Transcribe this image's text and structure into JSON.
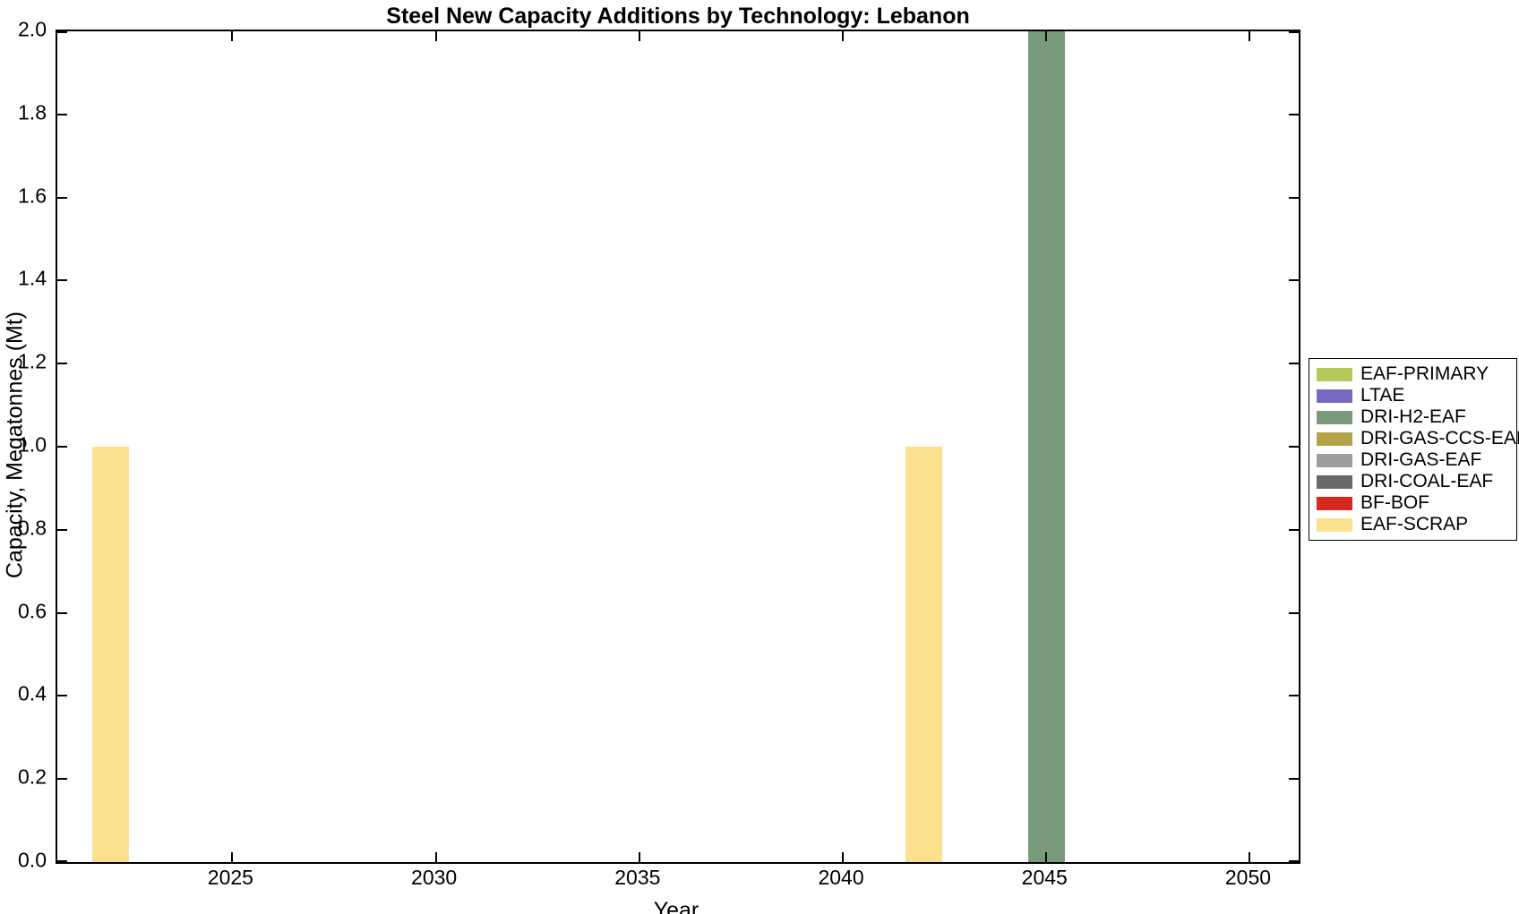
{
  "chart_data": {
    "type": "bar",
    "title": "Steel New Capacity Additions by Technology: Lebanon",
    "xlabel": "Year",
    "ylabel": "Capacity, Megatonnes (Mt)",
    "xlim": [
      2020.7,
      2051.2
    ],
    "ylim": [
      0,
      2
    ],
    "grid": false,
    "legend_position": "right-outside",
    "bar_width_years": 0.9,
    "xtick_values": [
      2025,
      2030,
      2035,
      2040,
      2045,
      2050
    ],
    "xtick_labels": [
      "2025",
      "2030",
      "2035",
      "2040",
      "2045",
      "2050"
    ],
    "ytick_values": [
      0,
      0.2,
      0.4,
      0.6,
      0.8,
      1.0,
      1.2,
      1.4,
      1.6,
      1.8,
      2.0
    ],
    "ytick_labels": [
      "0.0",
      "0.2",
      "0.4",
      "0.6",
      "0.8",
      "1.0",
      "1.2",
      "1.4",
      "1.6",
      "1.8",
      "2.0"
    ],
    "bars": [
      {
        "year": 2022,
        "series": "EAF-SCRAP",
        "value": 1.0
      },
      {
        "year": 2042,
        "series": "EAF-SCRAP",
        "value": 1.0
      },
      {
        "year": 2045,
        "series": "DRI-H2-EAF",
        "value": 2.0
      }
    ],
    "legend": [
      {
        "label": "EAF-PRIMARY",
        "color": "#b3c95b"
      },
      {
        "label": "LTAE",
        "color": "#7669c1"
      },
      {
        "label": "DRI-H2-EAF",
        "color": "#78997a"
      },
      {
        "label": "DRI-GAS-CCS-EAF",
        "color": "#b2a24a"
      },
      {
        "label": "DRI-GAS-EAF",
        "color": "#9e9e9e"
      },
      {
        "label": "DRI-COAL-EAF",
        "color": "#686868"
      },
      {
        "label": "BF-BOF",
        "color": "#d62a20"
      },
      {
        "label": "EAF-SCRAP",
        "color": "#fbe18e"
      }
    ]
  }
}
